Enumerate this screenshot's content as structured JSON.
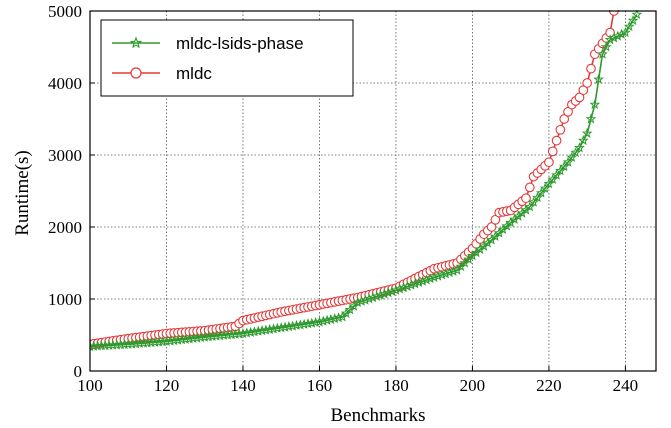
{
  "chart_data": {
    "type": "line",
    "xlabel": "Benchmarks",
    "ylabel": "Runtime(s)",
    "xlim": [
      100,
      248
    ],
    "ylim": [
      0,
      5000
    ],
    "xticks": [
      100,
      120,
      140,
      160,
      180,
      200,
      220,
      240
    ],
    "yticks": [
      0,
      1000,
      2000,
      3000,
      4000,
      5000
    ],
    "grid": true,
    "legend_position": "top-left",
    "series": [
      {
        "name": "mldc-lsids-phase",
        "color": "#2e9a2e",
        "marker": "star",
        "x": [
          100,
          110,
          120,
          130,
          140,
          150,
          160,
          166,
          170,
          180,
          190,
          196,
          200,
          205,
          210,
          215,
          220,
          225,
          228,
          230,
          232,
          234,
          236,
          238,
          240,
          243
        ],
        "y": [
          340,
          370,
          410,
          470,
          520,
          600,
          680,
          750,
          950,
          1120,
          1300,
          1400,
          1600,
          1820,
          2060,
          2280,
          2600,
          2900,
          3100,
          3300,
          3700,
          4400,
          4600,
          4650,
          4700,
          4950
        ]
      },
      {
        "name": "mldc",
        "color": "#e23a3a",
        "marker": "circle",
        "x": [
          100,
          110,
          120,
          130,
          138,
          140,
          150,
          160,
          170,
          180,
          190,
          196,
          200,
          203,
          205,
          207,
          210,
          214,
          216,
          220,
          222,
          224,
          226,
          228,
          230,
          232,
          234,
          236,
          237
        ],
        "y": [
          370,
          450,
          520,
          560,
          620,
          700,
          820,
          920,
          1020,
          1150,
          1420,
          1500,
          1700,
          1900,
          2000,
          2200,
          2230,
          2400,
          2700,
          2900,
          3200,
          3500,
          3700,
          3800,
          4000,
          4400,
          4550,
          4700,
          5000
        ]
      }
    ]
  }
}
